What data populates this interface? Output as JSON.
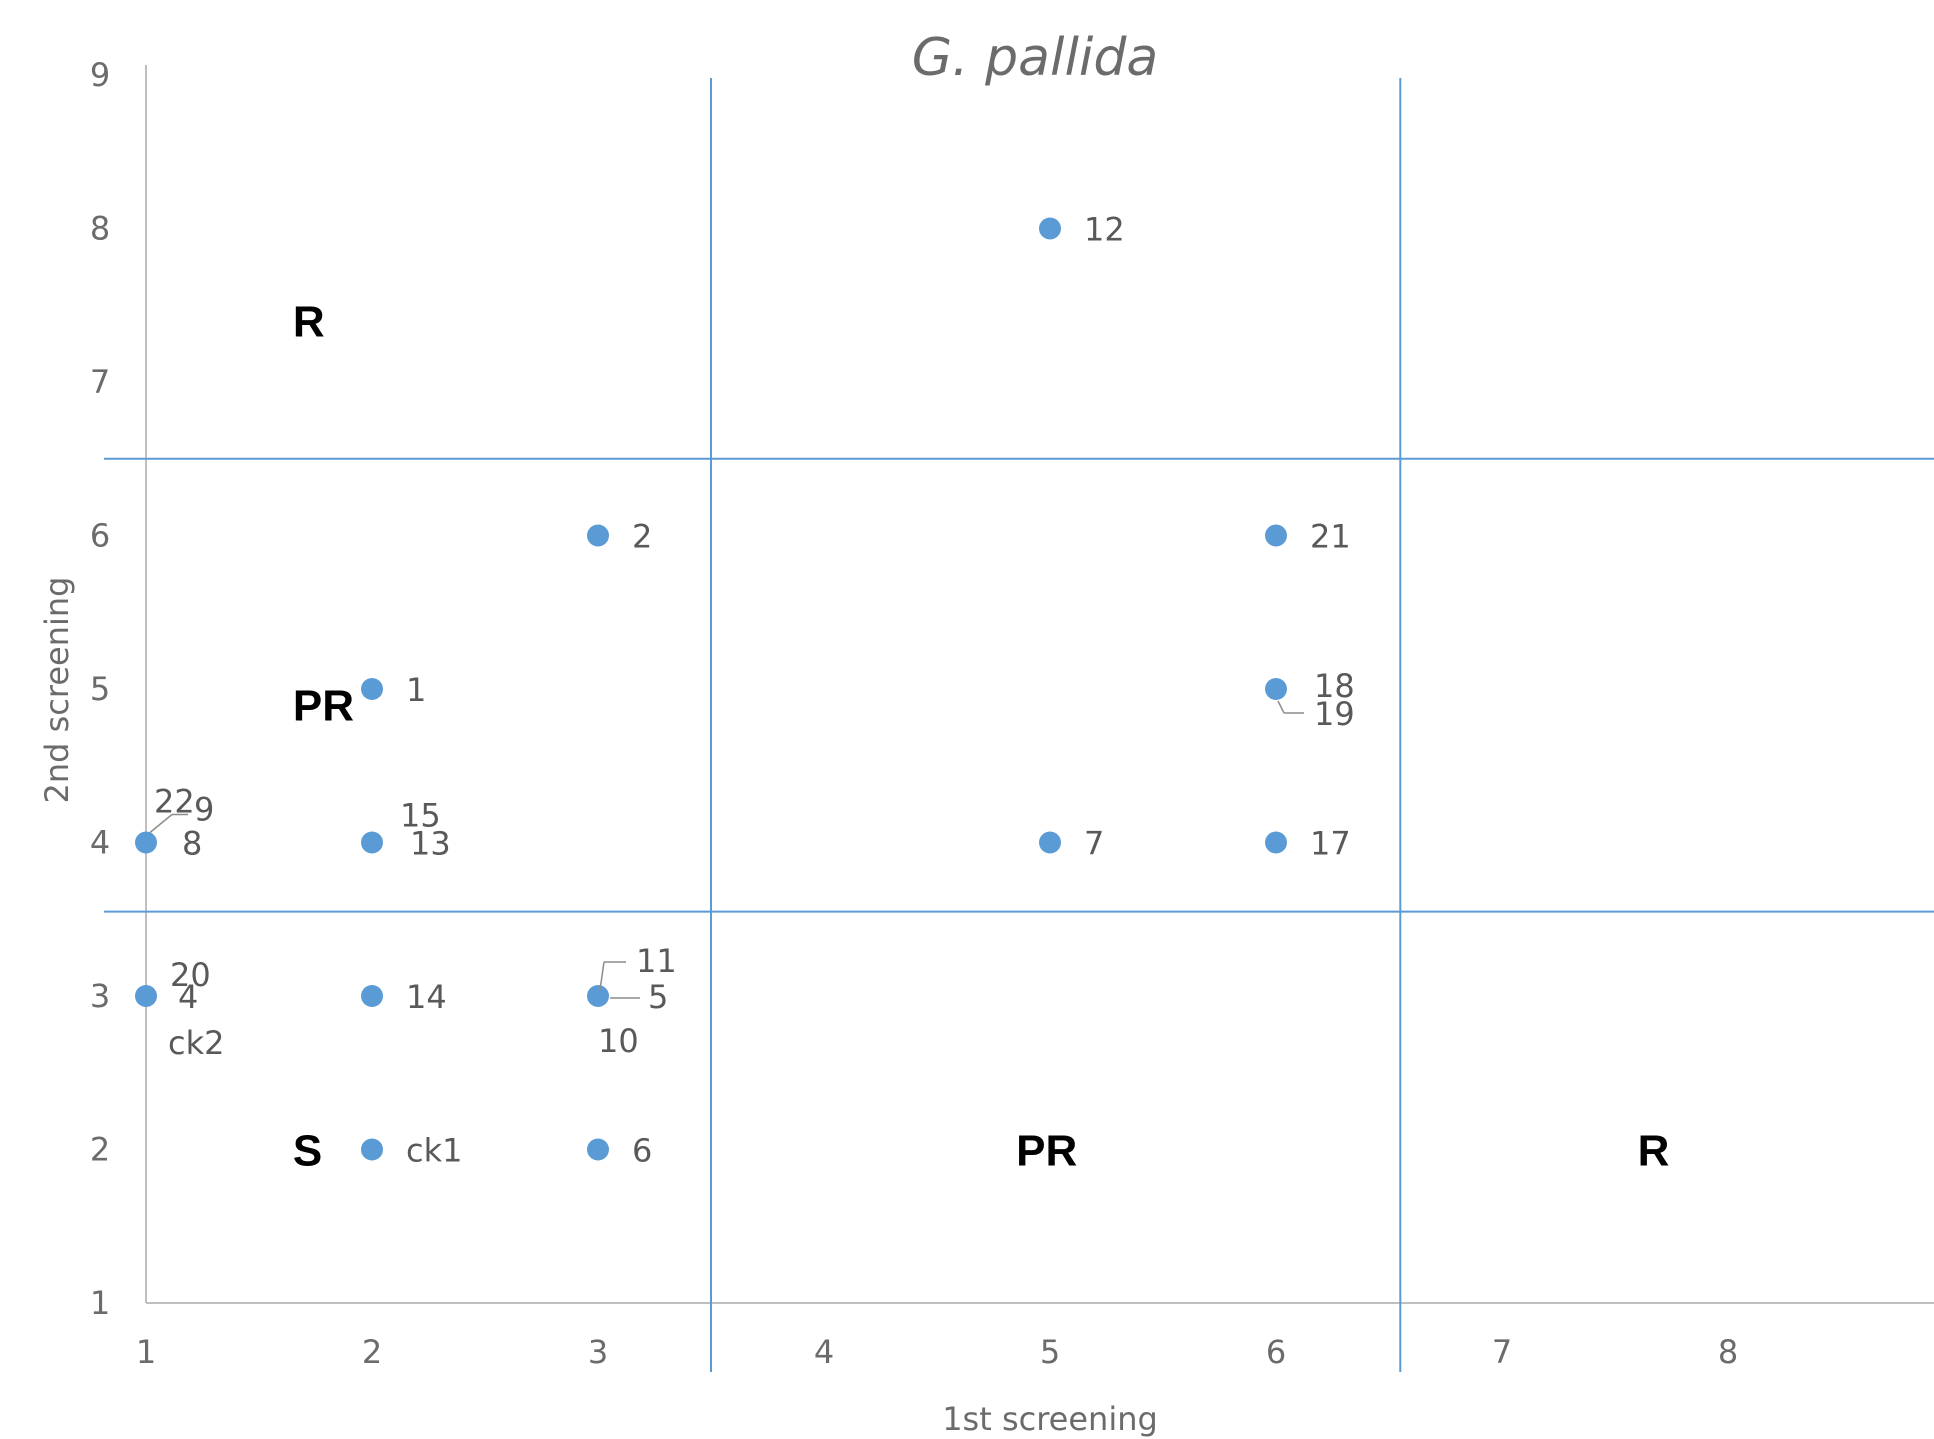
{
  "chart_data": {
    "type": "scatter",
    "title": "G. pallida",
    "xlabel": "1st screening",
    "ylabel": "2nd screening",
    "xlim": [
      1,
      9
    ],
    "ylim": [
      1,
      9
    ],
    "xticks": [
      1,
      2,
      3,
      4,
      5,
      6,
      7,
      8,
      9
    ],
    "yticks": [
      1,
      2,
      3,
      4,
      5,
      6,
      7,
      8,
      9
    ],
    "grid": false,
    "marker_color": "#5B9BD5",
    "divider_color": "#5B9BD5",
    "dividers": {
      "x": [
        3.5,
        6.55
      ],
      "y": [
        3.55,
        6.5
      ]
    },
    "zone_labels": [
      {
        "text": "R",
        "x": 1.65,
        "y": 7.4
      },
      {
        "text": "PR",
        "x": 1.65,
        "y": 4.9
      },
      {
        "text": "S",
        "x": 1.65,
        "y": 2.0
      },
      {
        "text": "PR",
        "x": 4.85,
        "y": 2.0
      },
      {
        "text": "R",
        "x": 7.6,
        "y": 2.0
      }
    ],
    "points": [
      {
        "x": 5,
        "y": 8,
        "labels": [
          "12"
        ]
      },
      {
        "x": 3,
        "y": 6,
        "labels": [
          "2"
        ]
      },
      {
        "x": 6,
        "y": 6,
        "labels": [
          "21"
        ]
      },
      {
        "x": 2,
        "y": 5,
        "labels": [
          "1"
        ]
      },
      {
        "x": 6,
        "y": 5,
        "labels": [
          "18",
          "19"
        ]
      },
      {
        "x": 1,
        "y": 4,
        "labels": [
          "22",
          "9",
          "8"
        ]
      },
      {
        "x": 2,
        "y": 4,
        "labels": [
          "15",
          "13"
        ]
      },
      {
        "x": 5,
        "y": 4,
        "labels": [
          "7"
        ]
      },
      {
        "x": 6,
        "y": 4,
        "labels": [
          "17"
        ]
      },
      {
        "x": 1,
        "y": 3,
        "labels": [
          "20",
          "4",
          "ck2"
        ]
      },
      {
        "x": 2,
        "y": 3,
        "labels": [
          "14"
        ]
      },
      {
        "x": 3,
        "y": 3,
        "labels": [
          "11",
          "5",
          "10"
        ]
      },
      {
        "x": 2,
        "y": 2,
        "labels": [
          "ck1"
        ]
      },
      {
        "x": 3,
        "y": 2,
        "labels": [
          "6"
        ]
      }
    ]
  }
}
